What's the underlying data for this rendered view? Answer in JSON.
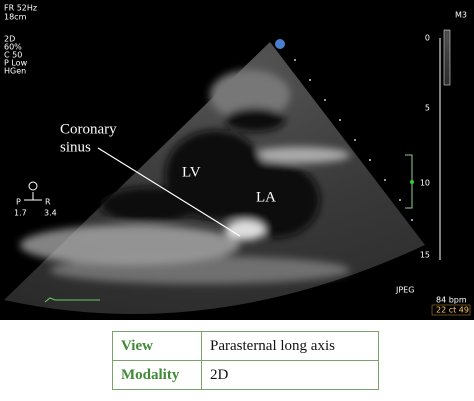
{
  "overlay": {
    "top": [
      "FR 52Hz",
      "18cm"
    ],
    "settings": [
      "2D",
      "60%",
      "C 50",
      "P Low",
      "HGen"
    ],
    "mode": "M3",
    "scale": [
      "0",
      "5",
      "10",
      "15"
    ],
    "format": "JPEG",
    "heart_rate": "84 bpm",
    "time": "22 ct 49",
    "orientation": [
      "P",
      "R",
      "1.7",
      "3.4"
    ]
  },
  "annotations": [
    [
      "Coronary",
      "sinus"
    ],
    "LV",
    "LA"
  ],
  "table": {
    "rows": [
      [
        "View",
        "Parasternal long axis"
      ],
      [
        "Modality",
        "2D"
      ]
    ]
  }
}
